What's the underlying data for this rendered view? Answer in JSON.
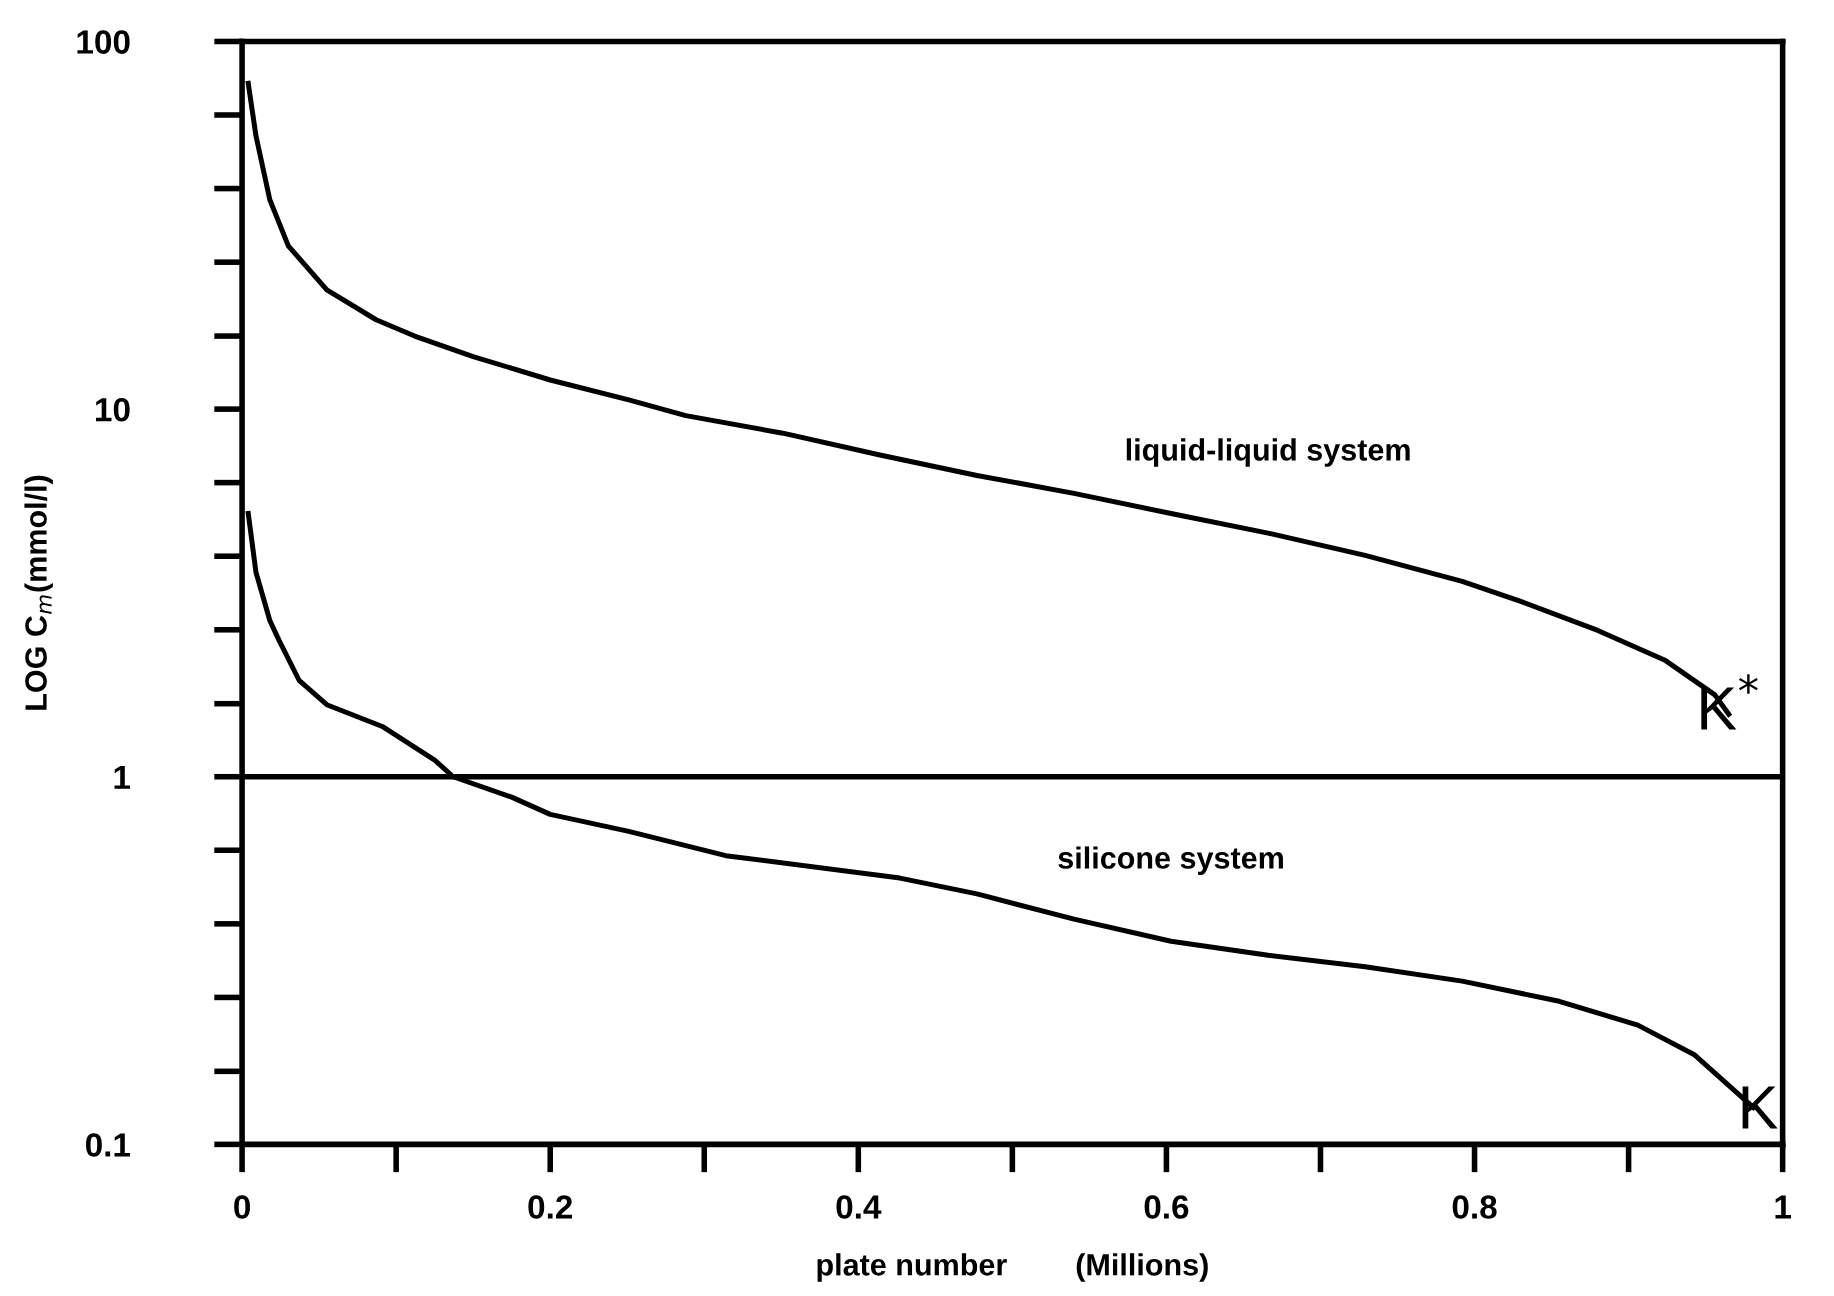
{
  "chart_data": {
    "type": "line",
    "xlabel": "plate number        (Millions)",
    "ylabel": "LOG C$_{m}$(mmol/l)",
    "log": "y",
    "xlim": [
      0,
      1
    ],
    "ylim": [
      0.1,
      100
    ],
    "xticks": [
      0,
      {
        "value": 0.1,
        "label": null
      },
      0.2,
      {
        "value": 0.3,
        "label": null
      },
      0.4,
      {
        "value": 0.5,
        "label": null
      },
      0.6,
      {
        "value": 0.7,
        "label": null
      },
      0.8,
      {
        "value": 0.9,
        "label": null
      },
      1
    ],
    "yticks": [
      0.1,
      {
        "value": 0.158,
        "label": null
      },
      {
        "value": 0.251,
        "label": null
      },
      {
        "value": 0.398,
        "label": null
      },
      {
        "value": 0.631,
        "label": null
      },
      1,
      {
        "value": 1.58,
        "label": null
      },
      {
        "value": 2.51,
        "label": null
      },
      {
        "value": 3.98,
        "label": null
      },
      {
        "value": 6.31,
        "label": null
      },
      10,
      {
        "value": 15.8,
        "label": null
      },
      {
        "value": 25.1,
        "label": null
      },
      {
        "value": 39.8,
        "label": null
      },
      {
        "value": 63.1,
        "label": null
      },
      100
    ],
    "grid": false,
    "line_style": "solid",
    "marker": "none",
    "series": [
      {
        "name": "liquid-liquid system",
        "color": "#000000",
        "x": [
          0.004,
          0.009,
          0.018,
          0.03,
          0.055,
          0.087,
          0.112,
          0.15,
          0.2,
          0.251,
          0.288,
          0.351,
          0.414,
          0.477,
          0.54,
          0.603,
          0.666,
          0.729,
          0.792,
          0.83,
          0.88,
          0.924,
          0.956,
          0.965
        ],
        "values": [
          76.9,
          55.4,
          37.1,
          27.8,
          21.1,
          17.5,
          15.8,
          13.9,
          12.0,
          10.6,
          9.6,
          8.6,
          7.5,
          6.6,
          5.9,
          5.2,
          4.6,
          4.0,
          3.4,
          3.0,
          2.5,
          2.07,
          1.67,
          1.48
        ]
      },
      {
        "name": "silicone system",
        "color": "#000000",
        "x": [
          0.004,
          0.009,
          0.018,
          0.024,
          0.037,
          0.055,
          0.091,
          0.125,
          0.137,
          0.175,
          0.2,
          0.251,
          0.314,
          0.427,
          0.477,
          0.54,
          0.603,
          0.666,
          0.729,
          0.792,
          0.855,
          0.906,
          0.943,
          0.981
        ],
        "values": [
          5.2,
          3.6,
          2.66,
          2.35,
          1.83,
          1.57,
          1.37,
          1.11,
          1.0,
          0.88,
          0.79,
          0.71,
          0.61,
          0.53,
          0.48,
          0.41,
          0.357,
          0.327,
          0.304,
          0.278,
          0.245,
          0.211,
          0.175,
          0.126
        ]
      }
    ],
    "ref_lines": [
      {
        "axis": "y",
        "value": 1,
        "color": "#000000",
        "line_style": "solid"
      }
    ],
    "annotations": [
      {
        "text": "K$^{*}$",
        "x": 0.965,
        "y": 1.48
      },
      {
        "text": "K",
        "x": 0.984,
        "y": 0.122
      }
    ]
  }
}
